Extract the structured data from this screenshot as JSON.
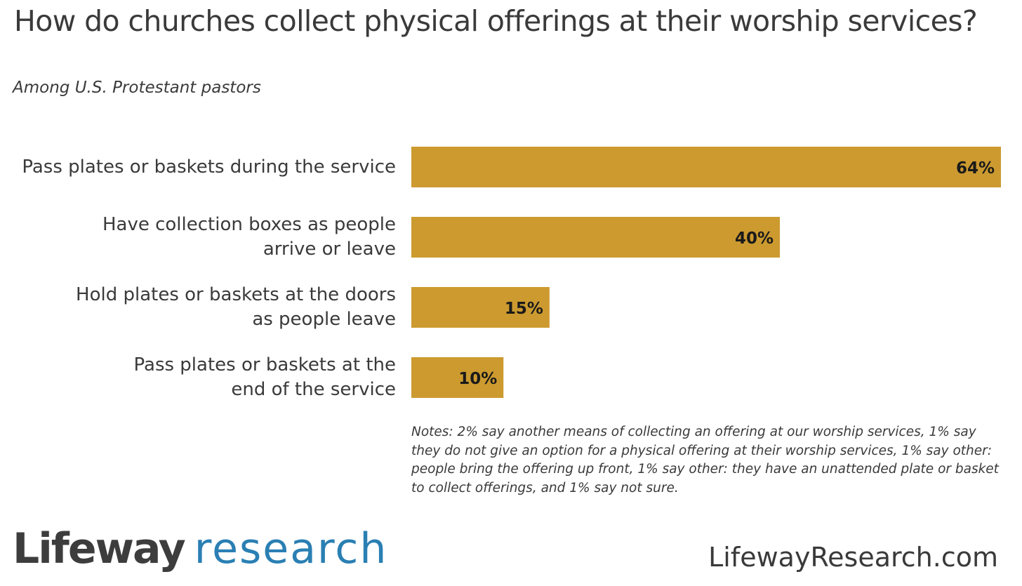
{
  "chart_data": {
    "type": "bar",
    "orientation": "horizontal",
    "title": "How do churches collect physical offerings at their worship services?",
    "subtitle": "Among U.S. Protestant pastors",
    "categories": [
      "Pass plates or baskets during the service",
      "Have collection boxes as people arrive or leave",
      "Hold plates or baskets at the doors as people leave",
      "Pass plates or baskets at the end of the service"
    ],
    "category_lines": [
      [
        "Pass plates or baskets during the service"
      ],
      [
        "Have collection boxes as people",
        "arrive or leave"
      ],
      [
        "Hold plates or baskets at the doors",
        "as people leave"
      ],
      [
        "Pass plates or baskets at the",
        "end of the service"
      ]
    ],
    "values": [
      64,
      40,
      15,
      10
    ],
    "value_labels": [
      "64%",
      "40%",
      "15%",
      "10%"
    ],
    "xlim": [
      0,
      64
    ],
    "bar_color": "#cc9a2f",
    "grid": false,
    "notes": "Notes: 2% say another means of collecting an offering at our worship services, 1% say they do not give an option for a physical offering at their worship services, 1% say other: people bring the offering up front, 1% say other: they have an unattended plate or basket to collect offerings, and 1% say not sure."
  },
  "footer": {
    "logo_brand": "Lifeway",
    "logo_brand2": "research",
    "url": "LifewayResearch.com",
    "logo_color": "#2a7fb3"
  }
}
